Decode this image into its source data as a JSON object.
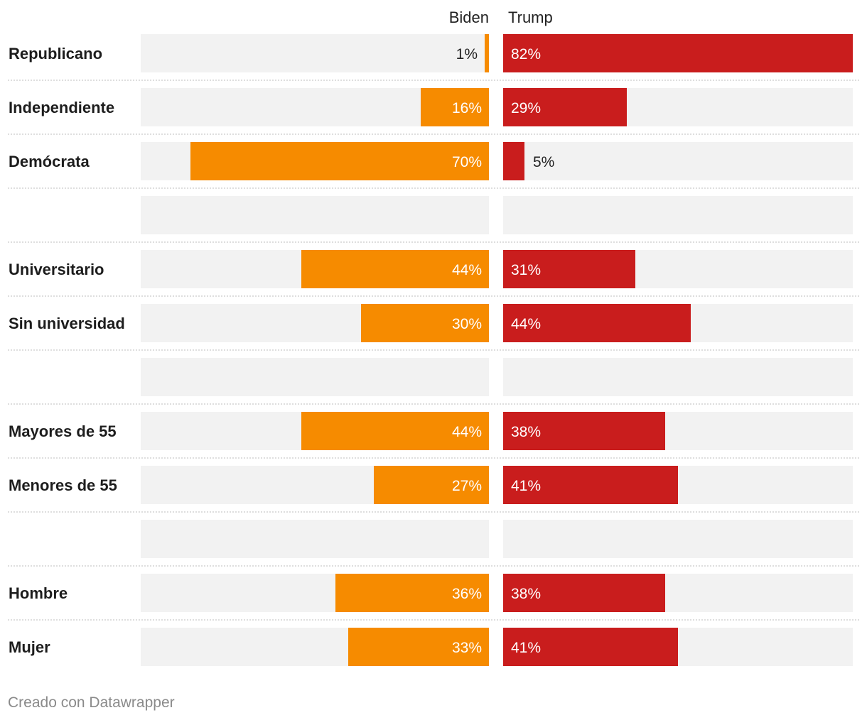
{
  "chart_data": {
    "type": "bar",
    "layout": "split-bars",
    "title": "",
    "xlabel": "",
    "ylabel": "",
    "xlim": [
      0,
      82
    ],
    "series": [
      {
        "name": "Biden",
        "color": "#f68b00",
        "direction": "left"
      },
      {
        "name": "Trump",
        "color": "#c91d1d",
        "direction": "right"
      }
    ],
    "rows": [
      {
        "label": "Republicano",
        "values": [
          1,
          82
        ],
        "value_labels": [
          "1%",
          "82%"
        ]
      },
      {
        "label": "Independiente",
        "values": [
          16,
          29
        ],
        "value_labels": [
          "16%",
          "29%"
        ]
      },
      {
        "label": "Demócrata",
        "values": [
          70,
          5
        ],
        "value_labels": [
          "70%",
          "5%"
        ]
      },
      {
        "label": "",
        "values": [
          null,
          null
        ],
        "value_labels": [
          "",
          ""
        ]
      },
      {
        "label": "Universitario",
        "values": [
          44,
          31
        ],
        "value_labels": [
          "44%",
          "31%"
        ]
      },
      {
        "label": "Sin universidad",
        "values": [
          30,
          44
        ],
        "value_labels": [
          "30%",
          "44%"
        ]
      },
      {
        "label": "",
        "values": [
          null,
          null
        ],
        "value_labels": [
          "",
          ""
        ]
      },
      {
        "label": "Mayores de 55",
        "values": [
          44,
          38
        ],
        "value_labels": [
          "44%",
          "38%"
        ]
      },
      {
        "label": "Menores de 55",
        "values": [
          27,
          41
        ],
        "value_labels": [
          "27%",
          "41%"
        ]
      },
      {
        "label": "",
        "values": [
          null,
          null
        ],
        "value_labels": [
          "",
          ""
        ]
      },
      {
        "label": "Hombre",
        "values": [
          36,
          38
        ],
        "value_labels": [
          "36%",
          "38%"
        ]
      },
      {
        "label": "Mujer",
        "values": [
          33,
          41
        ],
        "value_labels": [
          "33%",
          "41%"
        ]
      }
    ],
    "background_bar_color": "#f2f2f2",
    "grid": false
  },
  "footer": {
    "credit": "Creado con Datawrapper"
  }
}
